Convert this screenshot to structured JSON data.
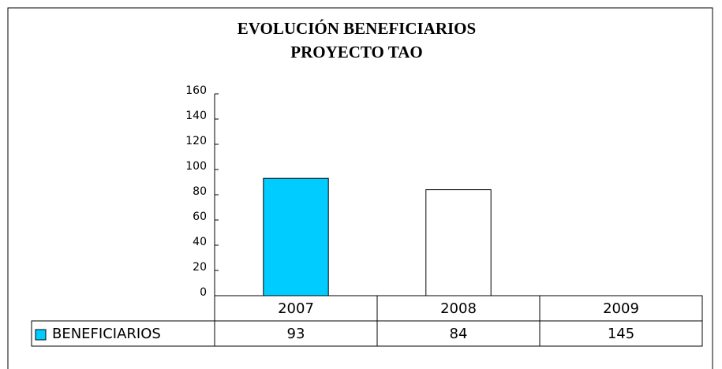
{
  "chart_data": {
    "type": "bar",
    "title_lines": [
      "EVOLUCIÓN BENEFICIARIOS",
      "PROYECTO TAO"
    ],
    "categories": [
      "2007",
      "2008",
      "2009"
    ],
    "series": [
      {
        "name": "BENEFICIARIOS",
        "color": "#00ccff",
        "values": [
          93,
          84,
          145
        ],
        "bar_colors": [
          "#00ccff",
          "#ffffff",
          "#ffffff"
        ],
        "edge_colors": [
          "#000000",
          "#000000",
          "#ffffff"
        ]
      }
    ],
    "ylim": [
      0,
      160
    ],
    "yticks": [
      0,
      20,
      40,
      60,
      80,
      100,
      120,
      140,
      160
    ],
    "grid": false,
    "data_table": true
  }
}
